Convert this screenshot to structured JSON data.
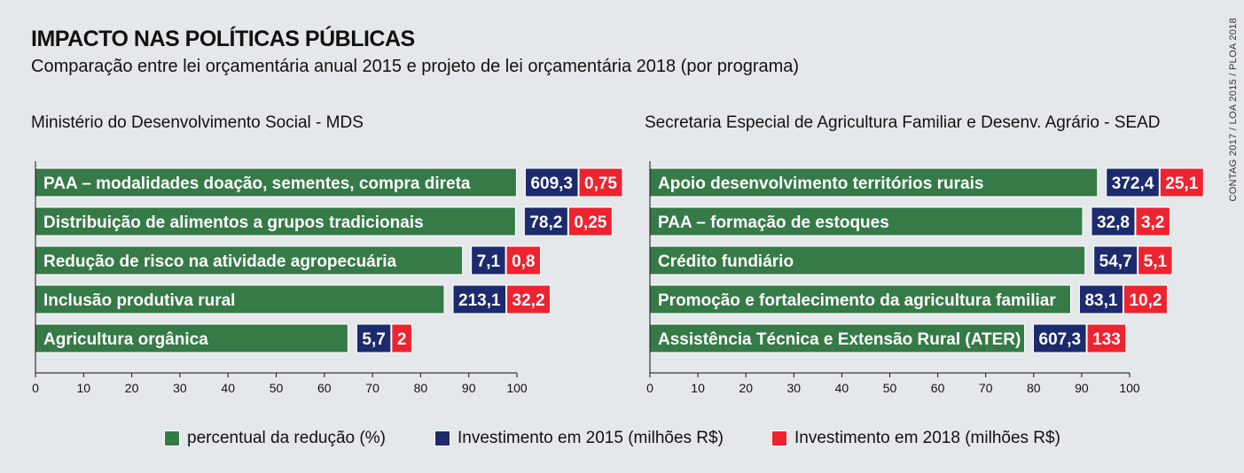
{
  "title": "IMPACTO NAS POLÍTICAS PÚBLICAS",
  "subtitle": "Comparação entre lei orçamentária anual 2015 e projeto de lei orçamentária 2018 (por programa)",
  "source": "CONTAG 2017 / LOA 2015 / PLOA 2018",
  "colors": {
    "reduction": "#357a47",
    "inv2015": "#1c2a6e",
    "inv2018": "#ee2330"
  },
  "legend": [
    {
      "label": "percentual da redução (%)",
      "color": "#357a47"
    },
    {
      "label": "Investimento em 2015 (milhões R$)",
      "color": "#1c2a6e"
    },
    {
      "label": "Investimento em 2018 (milhões R$)",
      "color": "#ee2330"
    }
  ],
  "chart_data": [
    {
      "type": "bar",
      "orientation": "horizontal",
      "title": "Ministério do Desenvolvimento Social - MDS",
      "xlim": [
        0,
        100
      ],
      "ticks": [
        0,
        10,
        20,
        30,
        40,
        50,
        60,
        70,
        80,
        90,
        100
      ],
      "categories": [
        "PAA – modalidades doação, sementes, compra direta",
        "Distribuição de alimentos a grupos tradicionais",
        "Redução de risco na atividade agropecuária",
        "Inclusão produtiva rural",
        "Agricultura orgânica"
      ],
      "reduction_percent": [
        99.9,
        99.7,
        88.7,
        84.9,
        64.9
      ],
      "investment_2015": [
        "609,3",
        "78,2",
        "7,1",
        "213,1",
        "5,7"
      ],
      "investment_2018": [
        "0,75",
        "0,25",
        "0,8",
        "32,2",
        "2"
      ]
    },
    {
      "type": "bar",
      "orientation": "horizontal",
      "title": "Secretaria Especial de Agricultura Familiar e Desenv. Agrário - SEAD",
      "xlim": [
        0,
        100
      ],
      "ticks": [
        0,
        10,
        20,
        30,
        40,
        50,
        60,
        70,
        80,
        90,
        100
      ],
      "categories": [
        "Apoio desenvolvimento territórios rurais",
        "PAA – formação de estoques",
        "Crédito fundiário",
        "Promoção e fortalecimento da agricultura familiar",
        "Assistência Técnica e Extensão Rural (ATER)"
      ],
      "reduction_percent": [
        93.3,
        90.2,
        90.7,
        87.7,
        78.1
      ],
      "investment_2015": [
        "372,4",
        "32,8",
        "54,7",
        "83,1",
        "607,3"
      ],
      "investment_2018": [
        "25,1",
        "3,2",
        "5,1",
        "10,2",
        "133"
      ]
    }
  ]
}
